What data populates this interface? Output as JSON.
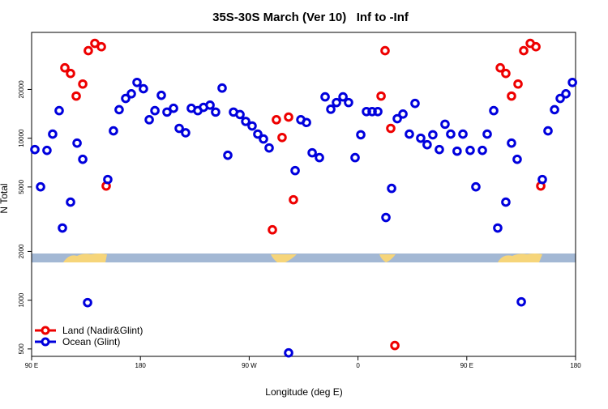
{
  "chart_data": {
    "type": "scatter",
    "title": "35S-30S March (Ver 10)   Inf to -Inf",
    "x_label": "Longitude (deg E)",
    "y_label": "N Total",
    "ylog": true,
    "legend": "bottom-left",
    "xlim": [
      90,
      540
    ],
    "ylim": [
      450,
      45000
    ],
    "xticks": [
      {
        "value": 90,
        "label": "90 E"
      },
      {
        "value": 180,
        "label": "180"
      },
      {
        "value": 270,
        "label": "90 W"
      },
      {
        "value": 360,
        "label": "0"
      },
      {
        "value": 450,
        "label": "90 E"
      },
      {
        "value": 540,
        "label": "180"
      }
    ],
    "yticks": [
      500,
      1000,
      2000,
      5000,
      10000,
      20000
    ],
    "series": [
      {
        "name": "Land (Nadir&Glint)",
        "color": "#ee0000",
        "x": [
          117.5,
          122.2,
          126.9,
          132.3,
          136.9,
          142.3,
          147.7,
          151.7,
          289.2,
          292.5,
          297.2,
          302.6,
          306.6,
          379.1,
          382.4,
          387.1,
          390.5,
          477.7,
          482.3,
          487,
          492.4,
          497.1,
          502.5,
          507.2,
          511.2
        ],
        "values": [
          27200,
          25100,
          18200,
          21600,
          34700,
          38500,
          36700,
          5070,
          2720,
          13000,
          10100,
          13500,
          4170,
          18200,
          34700,
          11500,
          525,
          27200,
          25100,
          18200,
          21600,
          34700,
          38500,
          36700,
          5070
        ]
      },
      {
        "name": "Ocean (Glint)",
        "color": "#0000dd",
        "x": [
          92.7,
          97.4,
          102.7,
          107.4,
          112.8,
          115.5,
          122.2,
          127.6,
          132.3,
          136.3,
          157.7,
          153,
          162.4,
          167.8,
          172.5,
          177.2,
          182.5,
          187.3,
          192,
          197.3,
          202,
          207.4,
          212.1,
          217.4,
          222.1,
          227.5,
          232.2,
          237.6,
          242.2,
          247.6,
          252.3,
          257,
          262.4,
          267.1,
          272.4,
          277.1,
          281.8,
          286.5,
          302.6,
          308,
          312.7,
          317.4,
          322.1,
          328.1,
          332.8,
          337.5,
          342.2,
          347.6,
          352.2,
          357.6,
          362.3,
          367,
          371.7,
          376.4,
          383.1,
          387.8,
          392.5,
          397.2,
          402.5,
          407.2,
          411.9,
          417.2,
          421.9,
          427.3,
          432,
          436.7,
          442,
          446.8,
          452.8,
          457.5,
          462.9,
          466.9,
          472.3,
          475.6,
          482.3,
          487,
          491.7,
          495.1,
          512.5,
          517.2,
          522.6,
          527.3,
          532,
          537.4
        ],
        "values": [
          8510,
          5010,
          8410,
          10600,
          14800,
          2790,
          4030,
          9330,
          7410,
          966,
          11100,
          5560,
          15000,
          17600,
          18800,
          22100,
          20200,
          13000,
          14800,
          18400,
          14500,
          15300,
          11500,
          10800,
          15300,
          14800,
          15500,
          16000,
          14500,
          20400,
          7850,
          14500,
          14000,
          12700,
          11900,
          10600,
          9890,
          8710,
          473,
          6310,
          13000,
          12500,
          8130,
          7590,
          18000,
          15100,
          16600,
          18000,
          16600,
          7590,
          10500,
          14600,
          14600,
          14600,
          3240,
          4900,
          13200,
          14100,
          10600,
          16400,
          10000,
          9120,
          10500,
          8510,
          12200,
          10600,
          8320,
          10600,
          8410,
          5010,
          8410,
          10600,
          14800,
          2790,
          4030,
          9330,
          7410,
          977,
          5560,
          11100,
          15000,
          17600,
          18800,
          22100
        ]
      }
    ]
  }
}
